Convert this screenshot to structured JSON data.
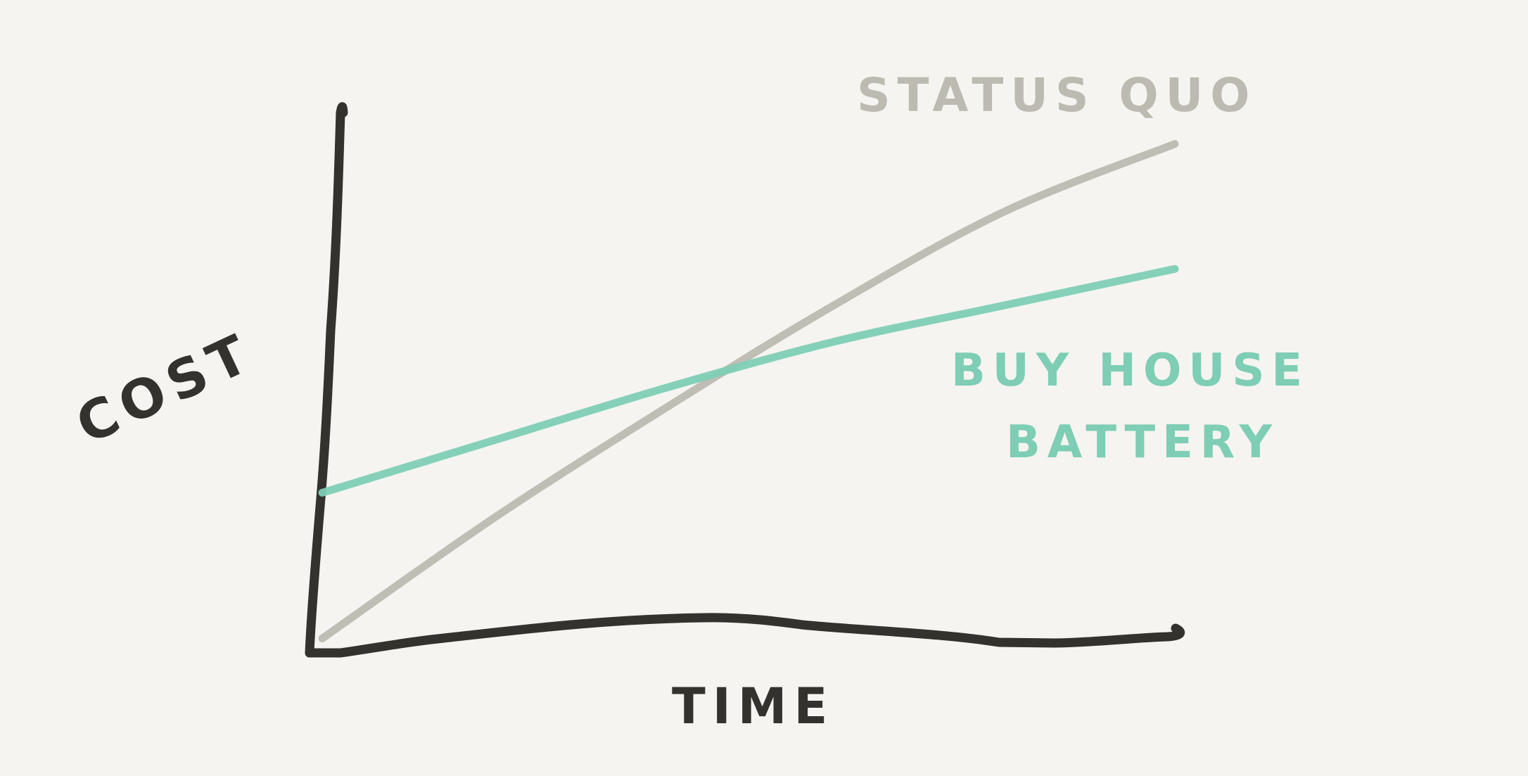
{
  "chart_data": {
    "type": "line",
    "title": "",
    "xlabel": "TIME",
    "ylabel": "COST",
    "xlim": [
      0,
      10
    ],
    "ylim": [
      0,
      10
    ],
    "grid": false,
    "legend": "inline labels at line ends",
    "series": [
      {
        "name": "STATUS QUO",
        "color": "#bcbab1",
        "x": [
          0,
          2,
          4,
          6,
          8,
          10
        ],
        "y": [
          0.1,
          2.4,
          4.5,
          6.5,
          8.3,
          9.6
        ]
      },
      {
        "name": "BUY HOUSE BATTERY",
        "color": "#7ecdb5",
        "x": [
          0,
          2,
          4,
          6,
          8,
          10
        ],
        "y": [
          2.9,
          3.9,
          4.9,
          5.8,
          6.5,
          7.2
        ]
      }
    ],
    "axis_color": "#34322d"
  }
}
